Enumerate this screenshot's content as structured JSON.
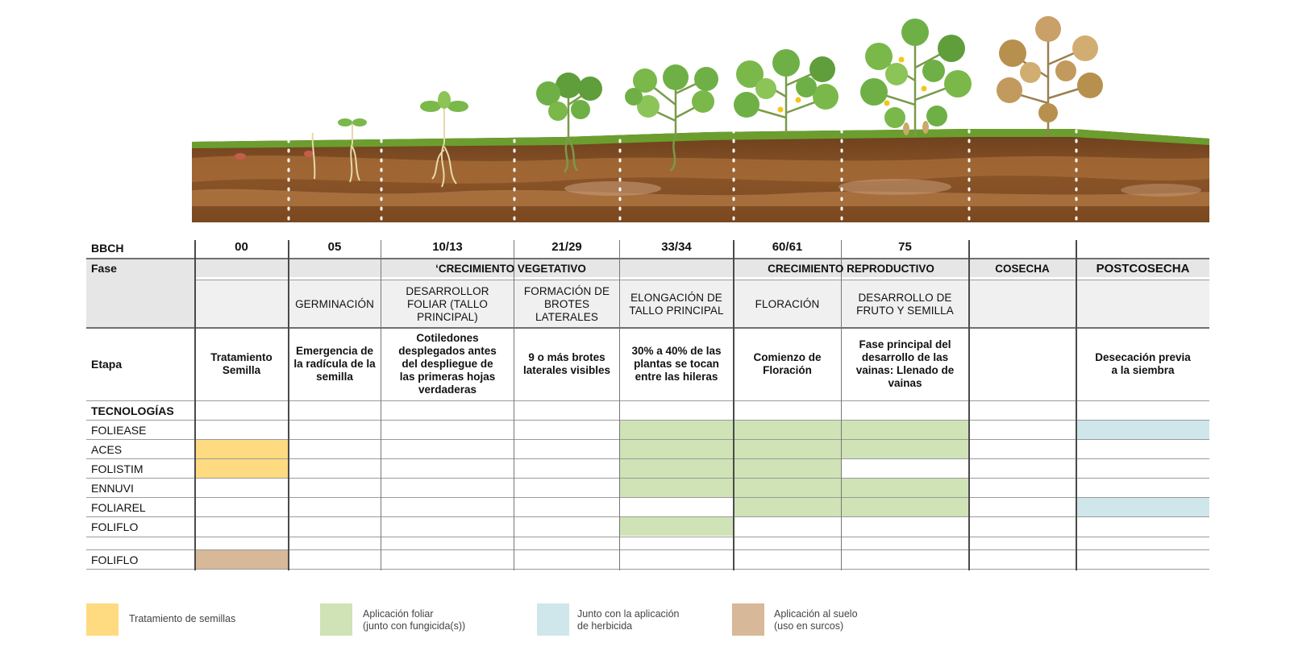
{
  "colors": {
    "seed_treatment": "#fedb80",
    "foliar": "#cfe3b6",
    "herbicide": "#cfe6ea",
    "soil": "#d7b898",
    "header_band": "#e6e6e6",
    "soil_dark": "#7a4a22",
    "grass": "#6b9e2e"
  },
  "row_labels": {
    "bbch": "BBCH",
    "fase": "Fase",
    "etapa": "Etapa",
    "tecnologias": "TECNOLOGÍAS"
  },
  "bbch_codes": [
    "00",
    "05",
    "10/13",
    "21/29",
    "33/34",
    "60/61",
    "75",
    "",
    ""
  ],
  "phases": [
    {
      "label": "‘CRECIMIENTO VEGETATIVO"
    },
    {
      "label": "CRECIMIENTO REPRODUCTIVO"
    },
    {
      "label": "COSECHA"
    },
    {
      "label": "POSTCOSECHA"
    }
  ],
  "subphases": [
    "",
    "GERMINACIÓN",
    "DESARROLLOR FOLIAR (TALLO PRINCIPAL)",
    "FORMACIÓN DE BROTES LATERALES",
    "ELONGACIÓN DE TALLO PRINCIPAL",
    "FLORACIÓN",
    "DESARROLLO DE FRUTO Y SEMILLA",
    "",
    ""
  ],
  "stages": [
    "Tratamiento Semilla",
    "Emergencia de la radícula de la semilla",
    "Cotiledones desplegados antes del despliegue de las primeras hojas verdaderas",
    "9 o más brotes laterales visibles",
    "30% a 40% de las plantas se tocan entre las hileras",
    "Comienzo de Floración",
    "Fase principal del desarrollo de las vainas: Llenado de vainas",
    "",
    "Desecación previa a la siembra"
  ],
  "technologies": [
    {
      "name": "FOLIEASE",
      "cells": [
        "",
        "",
        "",
        "",
        "foliar",
        "foliar",
        "foliar",
        "",
        "herbicide"
      ]
    },
    {
      "name": "ACES",
      "cells": [
        "seed",
        "",
        "",
        "",
        "foliar",
        "foliar",
        "foliar",
        "",
        ""
      ]
    },
    {
      "name": "FOLISTIM",
      "cells": [
        "seed",
        "",
        "",
        "",
        "foliar",
        "foliar",
        "",
        "",
        ""
      ]
    },
    {
      "name": "ENNUVI",
      "cells": [
        "",
        "",
        "",
        "",
        "foliar",
        "foliar",
        "foliar",
        "",
        ""
      ]
    },
    {
      "name": "FOLIAREL",
      "cells": [
        "",
        "",
        "",
        "",
        "",
        "foliar",
        "foliar",
        "",
        "herbicide"
      ]
    },
    {
      "name": "FOLIFLO",
      "cells": [
        "",
        "",
        "",
        "",
        "foliar",
        "",
        "",
        "",
        ""
      ]
    }
  ],
  "soil_technology": {
    "name": "FOLIFLO",
    "cells": [
      "soil",
      "",
      "",
      "",
      "",
      "",
      "",
      "",
      ""
    ]
  },
  "legend": [
    {
      "key": "seed",
      "text": "Tratamiento de semillas"
    },
    {
      "key": "foliar",
      "text": "Aplicación foliar\n(junto con fungicida(s))"
    },
    {
      "key": "herbicide",
      "text": "Junto con la aplicación\nde herbicida"
    },
    {
      "key": "soil",
      "text": "Aplicación al suelo\n(uso en surcos)"
    }
  ]
}
